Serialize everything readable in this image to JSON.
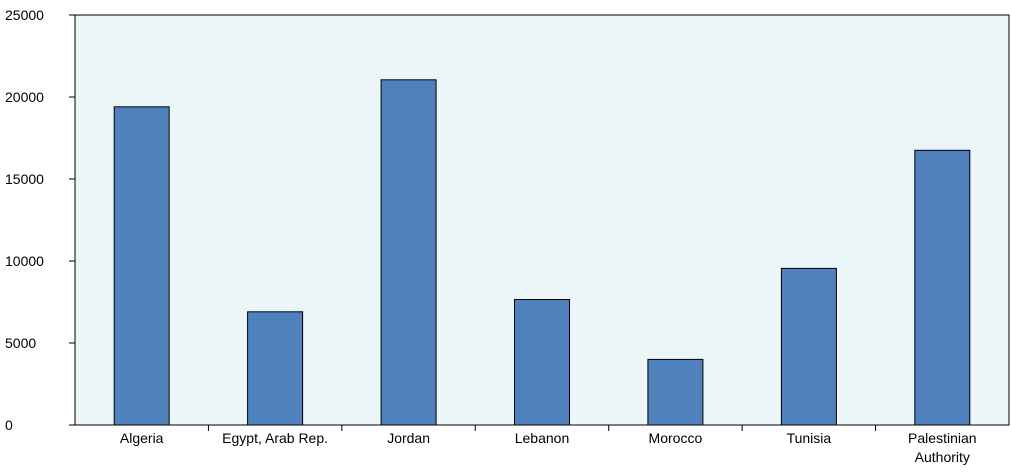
{
  "chart_data": {
    "type": "bar",
    "title": "",
    "xlabel": "",
    "ylabel": "",
    "categories": [
      [
        "Algeria"
      ],
      [
        "Egypt, Arab Rep."
      ],
      [
        "Jordan"
      ],
      [
        "Lebanon"
      ],
      [
        "Morocco"
      ],
      [
        "Tunisia"
      ],
      [
        "Palestinian",
        "Authority"
      ]
    ],
    "values": [
      19400,
      6900,
      21050,
      7650,
      4000,
      9550,
      16750
    ],
    "ylim": [
      0,
      25000
    ],
    "yticks": [
      0,
      5000,
      10000,
      15000,
      20000,
      25000
    ],
    "grid": false,
    "legend": "none",
    "colors": {
      "bar_fill": "#4f81bd",
      "bar_stroke": "#000000",
      "plot_background": "#eaf6f8",
      "axis": "#000000"
    }
  }
}
